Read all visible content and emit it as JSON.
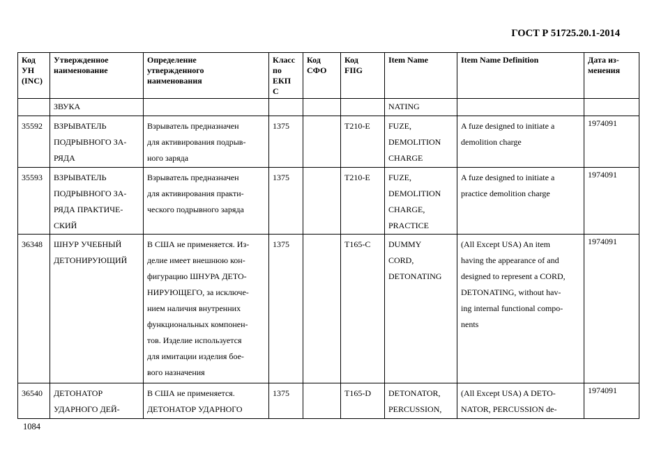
{
  "header": {
    "doc_title": "ГОСТ Р 51725.20.1-2014"
  },
  "footer": {
    "page_number": "1084"
  },
  "table": {
    "columns": [
      [
        "Код",
        "УН",
        "(INC)"
      ],
      [
        "Утвержденное",
        "наименование"
      ],
      [
        "Определение",
        "утвержденного",
        "наименования"
      ],
      [
        "Класс",
        "по",
        "ЕКП",
        "С"
      ],
      [
        "Код",
        "СФО"
      ],
      [
        "Код",
        "FIIG"
      ],
      [
        "Item Name"
      ],
      [
        "Item Name Definition"
      ],
      [
        "Дата из-",
        "менения"
      ]
    ],
    "rows": [
      {
        "cells": [
          [],
          [
            "ЗВУКА"
          ],
          [],
          [],
          [],
          [],
          [
            "NATING"
          ],
          [],
          []
        ]
      },
      {
        "cells": [
          [
            "35592"
          ],
          [
            "ВЗРЫВАТЕЛЬ",
            "ПОДРЫВНОГО ЗА-",
            "РЯДА"
          ],
          [
            "Взрыватель предназначен",
            "для активирования подрыв-",
            "ного заряда"
          ],
          [
            "1375"
          ],
          [],
          [
            "T210-E"
          ],
          [
            "FUZE,",
            "DEMOLITION",
            "CHARGE"
          ],
          [
            "A fuze designed to initiate a",
            "demolition charge"
          ],
          [
            "1974091"
          ]
        ]
      },
      {
        "cells": [
          [
            "35593"
          ],
          [
            "ВЗРЫВАТЕЛЬ",
            "ПОДРЫВНОГО ЗА-",
            "РЯДА ПРАКТИЧЕ-",
            "СКИЙ"
          ],
          [
            "Взрыватель предназначен",
            "для активирования практи-",
            "ческого подрывного заряда"
          ],
          [
            "1375"
          ],
          [],
          [
            "T210-E"
          ],
          [
            "FUZE,",
            "DEMOLITION",
            "CHARGE,",
            "PRACTICE"
          ],
          [
            "A fuze designed to initiate a",
            "practice demolition charge"
          ],
          [
            "1974091"
          ]
        ]
      },
      {
        "cells": [
          [
            "36348"
          ],
          [
            "ШНУР УЧЕБНЫЙ",
            "ДЕТОНИРУЮЩИЙ"
          ],
          [
            "В США не применяется. Из-",
            "делие имеет внешнюю кон-",
            "фигурацию ШНУРА ДЕТО-",
            "НИРУЮЩЕГО, за исключе-",
            "нием наличия внутренних",
            "функциональных компонен-",
            "тов. Изделие используется",
            "для имитации изделия бое-",
            "вого назначения"
          ],
          [
            "1375"
          ],
          [],
          [
            "T165-C"
          ],
          [
            "DUMMY",
            "CORD,",
            "DETONATING"
          ],
          [
            "(All Except USA) An item",
            "having the appearance of and",
            "designed to represent a CORD,",
            "DETONATING, without hav-",
            "ing internal functional compo-",
            "nents"
          ],
          [
            "1974091"
          ]
        ]
      },
      {
        "cells": [
          [
            "36540"
          ],
          [
            "ДЕТОНАТОР",
            "УДАРНОГО ДЕЙ-"
          ],
          [
            "В США не применяется.",
            "ДЕТОНАТОР УДАРНОГО"
          ],
          [
            "1375"
          ],
          [],
          [
            "T165-D"
          ],
          [
            "DETONATOR,",
            "PERCUSSION,"
          ],
          [
            "(All Except USA) A DETO-",
            "NATOR, PERCUSSION de-"
          ],
          [
            "1974091"
          ]
        ]
      }
    ]
  }
}
